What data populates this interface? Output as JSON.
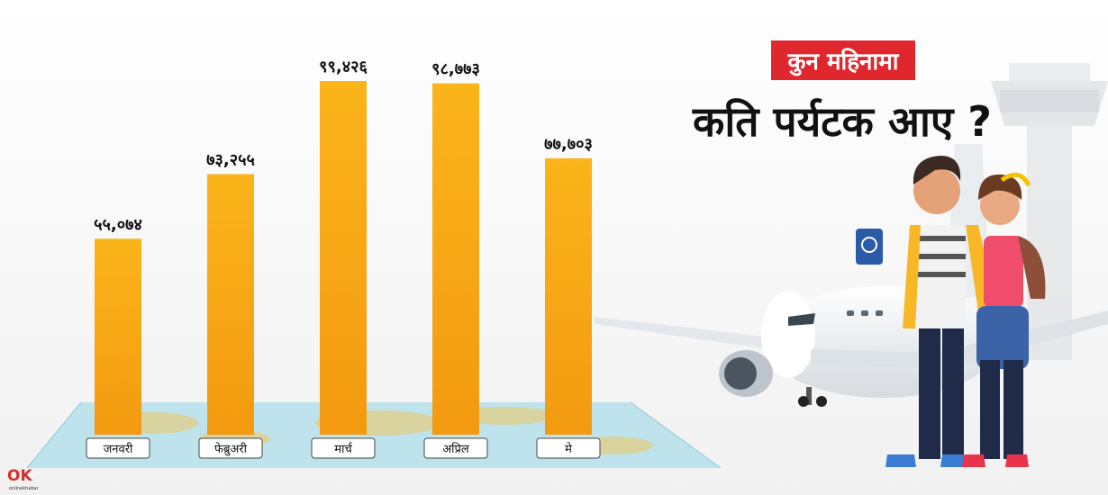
{
  "header": {
    "tag": "कुन महिनामा",
    "title": "कति पर्यटक आए ?"
  },
  "brand": {
    "logo_text": "onlinekhabar",
    "logo_mark": "OK"
  },
  "colors": {
    "bar_top": "#fbb41a",
    "bar_bottom": "#f39a10",
    "tag_bg": "#e0272d",
    "label_text": "#111111"
  },
  "chart_data": {
    "type": "bar",
    "categories": [
      "जनवरी",
      "फेब्रुअरी",
      "मार्च",
      "अप्रिल",
      "मे"
    ],
    "values": [
      55074,
      73255,
      99426,
      98773,
      77703
    ],
    "value_labels": [
      "५५,०७४",
      "७३,२५५",
      "९९,४२६",
      "९८,७७३",
      "७७,७०३"
    ],
    "title": "",
    "xlabel": "",
    "ylabel": "",
    "ylim": [
      0,
      100000
    ],
    "grid": false,
    "legend": "none"
  }
}
